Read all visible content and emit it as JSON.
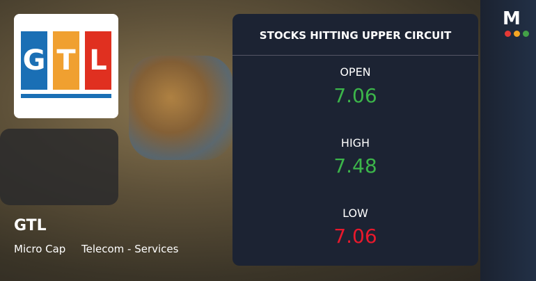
{
  "brand": "M",
  "company": {
    "logo_letters": [
      "G",
      "T",
      "L"
    ],
    "name": "GTL",
    "tags": [
      "Micro Cap",
      "Telecom - Services"
    ]
  },
  "panel": {
    "title": "STOCKS HITTING UPPER CIRCUIT",
    "rows": [
      {
        "label": "OPEN",
        "value": 7.06
      },
      {
        "label": "HIGH",
        "value": 7.48
      },
      {
        "label": "LOW",
        "value": 7.06
      }
    ]
  }
}
